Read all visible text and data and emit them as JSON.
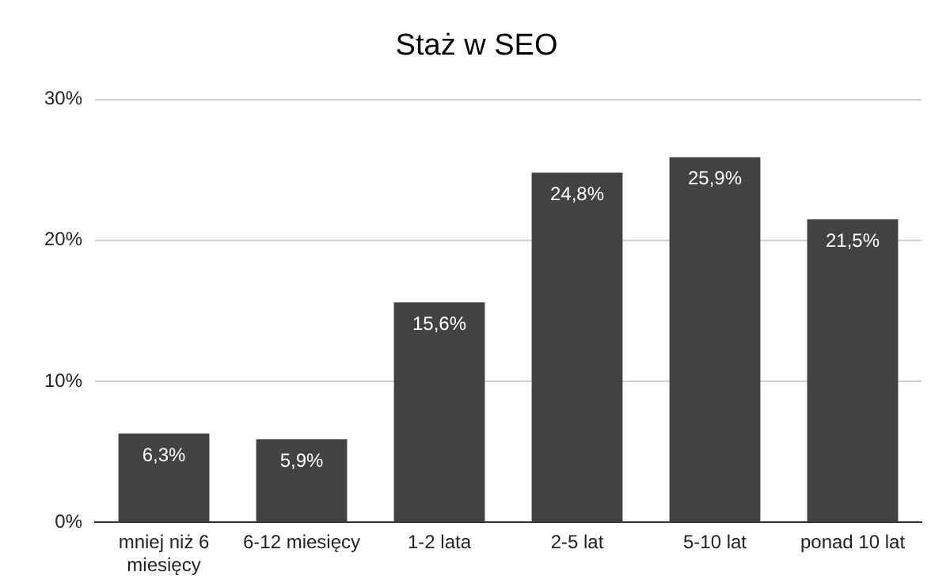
{
  "chart_data": {
    "type": "bar",
    "title": "Staż w SEO",
    "categories": [
      "mniej niż 6 miesięcy",
      "6-12 miesięcy",
      "1-2 lata",
      "2-5 lat",
      "5-10 lat",
      "ponad 10 lat"
    ],
    "values": [
      6.3,
      5.9,
      15.6,
      24.8,
      25.9,
      21.5
    ],
    "value_labels": [
      "6,3%",
      "5,9%",
      "15,6%",
      "24,8%",
      "25,9%",
      "21,5%"
    ],
    "color": "#424242",
    "ylim": [
      0,
      30
    ],
    "yticks": [
      {
        "value": 0,
        "label": "0%"
      },
      {
        "value": 10,
        "label": "10%"
      },
      {
        "value": 20,
        "label": "20%"
      },
      {
        "value": 30,
        "label": "30%"
      }
    ],
    "grid": "y",
    "legend": false
  }
}
